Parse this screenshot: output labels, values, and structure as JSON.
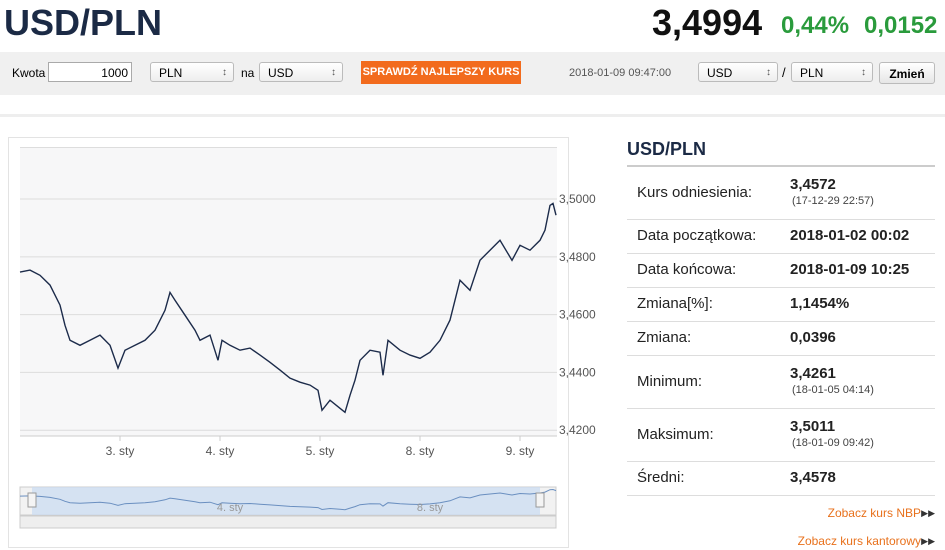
{
  "header": {
    "pair": "USD/PLN",
    "rate": "3,4994",
    "change_pct": "0,44%",
    "change_abs": "0,0152"
  },
  "converter": {
    "amount_label": "Kwota",
    "amount": "1000",
    "from": "PLN",
    "na": "na",
    "to": "USD",
    "button": "SPRAWDŹ NAJLEPSZY KURS",
    "timestamp": "2018-01-09 09:47:00",
    "pair_from": "USD",
    "separator": "/",
    "pair_to": "PLN",
    "change_button": "Zmień"
  },
  "chart_data": {
    "type": "line",
    "color": "#1c2b4a",
    "x": [
      0.0,
      0.1,
      0.2,
      0.3,
      0.4,
      0.45,
      0.5,
      0.6,
      0.7,
      0.8,
      0.9,
      0.98,
      1.05,
      1.15,
      1.25,
      1.35,
      1.45,
      1.5,
      1.55,
      1.65,
      1.75,
      1.8,
      1.9,
      1.98,
      2.02,
      2.1,
      2.2,
      2.3,
      2.4,
      2.5,
      2.6,
      2.7,
      2.8,
      2.9,
      2.98,
      3.02,
      3.1,
      3.2,
      3.25,
      3.3,
      3.35,
      3.4,
      3.5,
      3.6,
      3.63,
      3.68,
      3.8,
      3.9,
      4.0,
      4.1,
      4.2,
      4.3,
      4.35,
      4.4,
      4.5,
      4.6,
      4.7,
      4.8,
      4.92,
      5.0,
      5.1,
      5.2,
      5.25,
      5.3,
      5.33,
      5.36
    ],
    "values": [
      3.4747,
      3.4754,
      3.4736,
      3.4702,
      3.4633,
      3.4563,
      3.4511,
      3.4494,
      3.4511,
      3.4529,
      3.4494,
      3.4415,
      3.4477,
      3.4494,
      3.4511,
      3.4546,
      3.4615,
      3.4677,
      3.465,
      3.4598,
      3.4546,
      3.4511,
      3.4529,
      3.4442,
      3.4511,
      3.4494,
      3.4477,
      3.4484,
      3.446,
      3.4435,
      3.4408,
      3.438,
      3.4366,
      3.4356,
      3.4338,
      3.4269,
      3.4304,
      3.4276,
      3.4262,
      3.4321,
      3.4373,
      3.4442,
      3.4477,
      3.447,
      3.439,
      3.4511,
      3.4477,
      3.446,
      3.4449,
      3.447,
      3.4511,
      3.4581,
      3.465,
      3.4719,
      3.4684,
      3.4788,
      3.4823,
      3.4857,
      3.4788,
      3.484,
      3.4823,
      3.4857,
      3.4892,
      3.4978,
      3.4985,
      3.4944
    ],
    "xlim": [
      0,
      5.37
    ],
    "xticks": [
      {
        "value": 1,
        "label": "3. sty"
      },
      {
        "value": 2,
        "label": "4. sty"
      },
      {
        "value": 3,
        "label": "5. sty"
      },
      {
        "value": 4,
        "label": "8. sty"
      },
      {
        "value": 5,
        "label": "9. sty"
      }
    ],
    "ylim": [
      3.418,
      3.518
    ],
    "yticks": [
      {
        "value": 3.42,
        "label": "3,4200"
      },
      {
        "value": 3.44,
        "label": "3,4400"
      },
      {
        "value": 3.46,
        "label": "3,4600"
      },
      {
        "value": 3.48,
        "label": "3,4800"
      },
      {
        "value": 3.5,
        "label": "3,5000"
      }
    ],
    "grid": true
  },
  "stats": {
    "title": "USD/PLN",
    "rows": [
      {
        "label": "Kurs odniesienia:",
        "value": "3,4572",
        "sub": "(17-12-29 22:57)"
      },
      {
        "label": "Data początkowa:",
        "value": "2018-01-02 00:02"
      },
      {
        "label": "Data końcowa:",
        "value": "2018-01-09 10:25"
      },
      {
        "label": "Zmiana[%]:",
        "value": "1,1454%"
      },
      {
        "label": "Zmiana:",
        "value": "0,0396"
      },
      {
        "label": "Minimum:",
        "value": "3,4261",
        "sub": "(18-01-05 04:14)"
      },
      {
        "label": "Maksimum:",
        "value": "3,5011",
        "sub": "(18-01-09 09:42)"
      },
      {
        "label": "Średni:",
        "value": "3,4578"
      }
    ]
  },
  "links": [
    "Zobacz kurs NBP",
    "Zobacz kurs kantorowy"
  ]
}
